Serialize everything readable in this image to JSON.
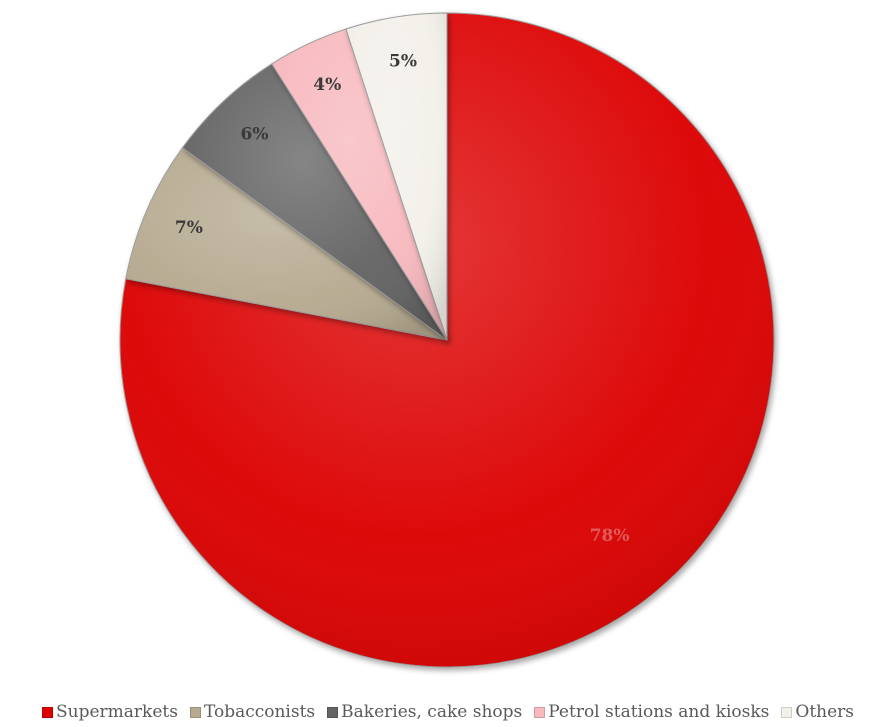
{
  "chart_data": {
    "type": "pie",
    "categories": [
      "Supermarkets",
      "Tobacconists",
      "Bakeries, cake shops",
      "Petrol stations and kiosks",
      "Others"
    ],
    "values": [
      78,
      7,
      6,
      4,
      5
    ],
    "data_labels": [
      "78%",
      "7%",
      "6%",
      "4%",
      "5%"
    ],
    "start_angle_deg": 0,
    "direction": "clockwise",
    "colors": [
      "#dc0000",
      "#b6aa90",
      "#646464",
      "#f7b9be",
      "#f3f0ea"
    ],
    "label_colors": [
      "#e05a5a",
      "#3a3a3a",
      "#3a3a3a",
      "#3a3a3a",
      "#3a3a3a"
    ],
    "legend_position": "bottom"
  }
}
